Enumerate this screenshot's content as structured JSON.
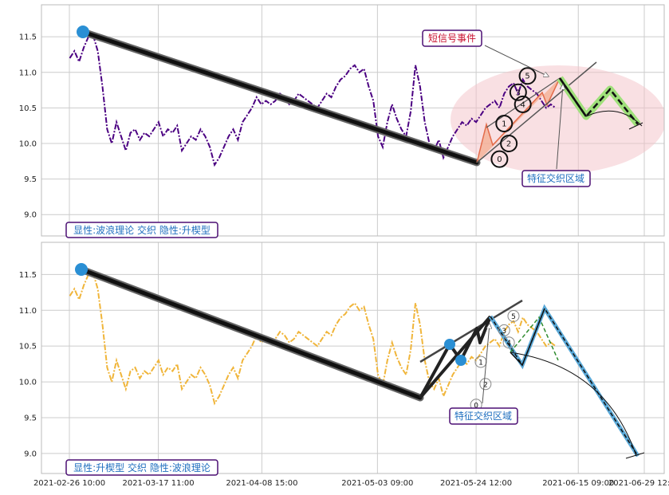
{
  "colors": {
    "purple_price": "#4b0082",
    "gold_price": "#f0b53a",
    "accent_blue": "#2a8fd4",
    "tag_border": "#4b0f73",
    "tag_text_blue": "#1f6fbf",
    "tag_text_red": "#c8102e",
    "highlight_ellipse": "#f4c2c7",
    "wave_green": "#9fe07a",
    "wave_salmon": "#f3a98a",
    "projection_blue": "#5aa9d8"
  },
  "chart_data": [
    {
      "type": "line",
      "panel": "top",
      "ylim": [
        8.7,
        11.95
      ],
      "yticks": [
        "9.0",
        "9.5",
        "10.0",
        "10.5",
        "11.0",
        "11.5"
      ],
      "grid": true,
      "series": [
        {
          "x": [
            "2021-02-26",
            "2021-02-27",
            "2021-02-28",
            "2021-03-01",
            "2021-03-02",
            "2021-03-03",
            "2021-03-04",
            "2021-03-05",
            "2021-03-06",
            "2021-03-07",
            "2021-03-08",
            "2021-03-09",
            "2021-03-10",
            "2021-03-11",
            "2021-03-12",
            "2021-03-13",
            "2021-03-14",
            "2021-03-15",
            "2021-03-16",
            "2021-03-17",
            "2021-03-18",
            "2021-03-19",
            "2021-03-20",
            "2021-03-21",
            "2021-03-22",
            "2021-03-23",
            "2021-03-24",
            "2021-03-25",
            "2021-03-26",
            "2021-03-27",
            "2021-03-28",
            "2021-03-29",
            "2021-03-30",
            "2021-03-31",
            "2021-04-01",
            "2021-04-02",
            "2021-04-03",
            "2021-04-04",
            "2021-04-05",
            "2021-04-06",
            "2021-04-07",
            "2021-04-08",
            "2021-04-09",
            "2021-04-10",
            "2021-04-11",
            "2021-04-12",
            "2021-04-13",
            "2021-04-14",
            "2021-04-15",
            "2021-04-16",
            "2021-04-17",
            "2021-04-18",
            "2021-04-19",
            "2021-04-20",
            "2021-04-21",
            "2021-04-22",
            "2021-04-23",
            "2021-04-24",
            "2021-04-25",
            "2021-04-26",
            "2021-04-27",
            "2021-04-28",
            "2021-04-29",
            "2021-04-30",
            "2021-05-01",
            "2021-05-02",
            "2021-05-03",
            "2021-05-04",
            "2021-05-05",
            "2021-05-06",
            "2021-05-07",
            "2021-05-08",
            "2021-05-09",
            "2021-05-10",
            "2021-05-11",
            "2021-05-12",
            "2021-05-13",
            "2021-05-14",
            "2021-05-15",
            "2021-05-16",
            "2021-05-17",
            "2021-05-18",
            "2021-05-19",
            "2021-05-20",
            "2021-05-21",
            "2021-05-22",
            "2021-05-23",
            "2021-05-24",
            "2021-05-25",
            "2021-05-26",
            "2021-05-27",
            "2021-05-28",
            "2021-05-29",
            "2021-05-30",
            "2021-05-31",
            "2021-06-01",
            "2021-06-02",
            "2021-06-03",
            "2021-06-04",
            "2021-06-05",
            "2021-06-06",
            "2021-06-07",
            "2021-06-08",
            "2021-06-09",
            "2021-06-10"
          ],
          "values": [
            11.2,
            11.3,
            11.15,
            11.35,
            11.5,
            11.52,
            11.3,
            10.8,
            10.2,
            10.0,
            10.3,
            10.1,
            9.9,
            10.15,
            10.2,
            10.05,
            10.15,
            10.1,
            10.2,
            10.3,
            10.1,
            10.2,
            10.15,
            10.25,
            9.9,
            10.0,
            10.1,
            10.05,
            10.2,
            10.1,
            9.95,
            9.7,
            9.8,
            9.95,
            10.1,
            10.2,
            10.05,
            10.3,
            10.4,
            10.5,
            10.65,
            10.55,
            10.6,
            10.55,
            10.6,
            10.7,
            10.65,
            10.55,
            10.6,
            10.7,
            10.65,
            10.6,
            10.55,
            10.5,
            10.6,
            10.7,
            10.65,
            10.8,
            10.9,
            10.95,
            11.05,
            11.1,
            11.0,
            11.05,
            10.8,
            10.6,
            10.1,
            9.95,
            10.3,
            10.55,
            10.35,
            10.2,
            10.1,
            10.45,
            11.1,
            10.8,
            10.3,
            10.0,
            9.9,
            10.05,
            9.8,
            9.95,
            10.1,
            10.2,
            10.3,
            10.25,
            10.35,
            10.3,
            10.4,
            10.5,
            10.55,
            10.6,
            10.5,
            10.7,
            10.8,
            10.85,
            10.7,
            10.9,
            10.8,
            10.75,
            10.7,
            10.6,
            10.5,
            10.55,
            10.5
          ]
        }
      ],
      "wave_points": {
        "labels": [
          "0",
          "1",
          "2",
          "3",
          "4",
          "5"
        ],
        "x": [
          "2021-05-29",
          "2021-05-30",
          "2021-05-31",
          "2021-06-02",
          "2021-06-03",
          "2021-06-04"
        ],
        "y": [
          9.78,
          10.28,
          10.0,
          10.72,
          10.55,
          10.95
        ]
      },
      "annotations": [
        "短信号事件",
        "特征交织区域"
      ],
      "pattern_label": "显性:波浪理论 交织 隐性:升楔型"
    },
    {
      "type": "line",
      "panel": "bottom",
      "ylim": [
        8.72,
        11.95
      ],
      "yticks": [
        "9.0",
        "9.5",
        "10.0",
        "10.5",
        "11.0",
        "11.5"
      ],
      "xticks": [
        "2021-02-26 10:00",
        "2021-03-17 11:00",
        "2021-04-08 15:00",
        "2021-05-03 09:00",
        "2021-05-24 12:00",
        "2021-06-15 09:00",
        "2021-06-29 12:00"
      ],
      "grid": true,
      "series": [
        {
          "x": [
            "2021-02-26",
            "2021-02-27",
            "2021-02-28",
            "2021-03-01",
            "2021-03-02",
            "2021-03-03",
            "2021-03-04",
            "2021-03-05",
            "2021-03-06",
            "2021-03-07",
            "2021-03-08",
            "2021-03-09",
            "2021-03-10",
            "2021-03-11",
            "2021-03-12",
            "2021-03-13",
            "2021-03-14",
            "2021-03-15",
            "2021-03-16",
            "2021-03-17",
            "2021-03-18",
            "2021-03-19",
            "2021-03-20",
            "2021-03-21",
            "2021-03-22",
            "2021-03-23",
            "2021-03-24",
            "2021-03-25",
            "2021-03-26",
            "2021-03-27",
            "2021-03-28",
            "2021-03-29",
            "2021-03-30",
            "2021-03-31",
            "2021-04-01",
            "2021-04-02",
            "2021-04-03",
            "2021-04-04",
            "2021-04-05",
            "2021-04-06",
            "2021-04-07",
            "2021-04-08",
            "2021-04-09",
            "2021-04-10",
            "2021-04-11",
            "2021-04-12",
            "2021-04-13",
            "2021-04-14",
            "2021-04-15",
            "2021-04-16",
            "2021-04-17",
            "2021-04-18",
            "2021-04-19",
            "2021-04-20",
            "2021-04-21",
            "2021-04-22",
            "2021-04-23",
            "2021-04-24",
            "2021-04-25",
            "2021-04-26",
            "2021-04-27",
            "2021-04-28",
            "2021-04-29",
            "2021-04-30",
            "2021-05-01",
            "2021-05-02",
            "2021-05-03",
            "2021-05-04",
            "2021-05-05",
            "2021-05-06",
            "2021-05-07",
            "2021-05-08",
            "2021-05-09",
            "2021-05-10",
            "2021-05-11",
            "2021-05-12",
            "2021-05-13",
            "2021-05-14",
            "2021-05-15",
            "2021-05-16",
            "2021-05-17",
            "2021-05-18",
            "2021-05-19",
            "2021-05-20",
            "2021-05-21",
            "2021-05-22",
            "2021-05-23",
            "2021-05-24",
            "2021-05-25",
            "2021-05-26",
            "2021-05-27",
            "2021-05-28",
            "2021-05-29",
            "2021-05-30",
            "2021-05-31",
            "2021-06-01",
            "2021-06-02",
            "2021-06-03",
            "2021-06-04",
            "2021-06-05",
            "2021-06-06",
            "2021-06-07",
            "2021-06-08",
            "2021-06-09",
            "2021-06-10"
          ],
          "values": [
            11.2,
            11.3,
            11.15,
            11.35,
            11.5,
            11.52,
            11.3,
            10.8,
            10.2,
            10.0,
            10.3,
            10.1,
            9.9,
            10.15,
            10.2,
            10.05,
            10.15,
            10.1,
            10.2,
            10.3,
            10.1,
            10.2,
            10.15,
            10.25,
            9.9,
            10.0,
            10.1,
            10.05,
            10.2,
            10.1,
            9.95,
            9.7,
            9.8,
            9.95,
            10.1,
            10.2,
            10.05,
            10.3,
            10.4,
            10.5,
            10.65,
            10.55,
            10.6,
            10.55,
            10.6,
            10.7,
            10.65,
            10.55,
            10.6,
            10.7,
            10.65,
            10.6,
            10.55,
            10.5,
            10.6,
            10.7,
            10.65,
            10.8,
            10.9,
            10.95,
            11.05,
            11.1,
            11.0,
            11.05,
            10.8,
            10.6,
            10.1,
            9.95,
            10.3,
            10.55,
            10.35,
            10.2,
            10.1,
            10.45,
            11.1,
            10.8,
            10.3,
            10.0,
            9.9,
            10.05,
            9.8,
            9.95,
            10.1,
            10.2,
            10.3,
            10.25,
            10.35,
            10.3,
            10.4,
            10.5,
            10.55,
            10.6,
            10.5,
            10.7,
            10.8,
            10.85,
            10.7,
            10.9,
            10.8,
            10.75,
            10.7,
            10.6,
            10.5,
            10.55,
            10.5
          ]
        }
      ],
      "wave_points": {
        "labels": [
          "0",
          "1",
          "2",
          "3",
          "4",
          "5"
        ],
        "x": [
          "2021-05-24",
          "2021-05-25",
          "2021-05-26",
          "2021-05-30",
          "2021-05-31",
          "2021-06-01"
        ],
        "y": [
          9.68,
          10.28,
          9.97,
          10.72,
          10.55,
          10.92
        ]
      },
      "annotations": [
        "特征交织区域"
      ],
      "pattern_label": "显性:升楔型 交织 隐性:波浪理论"
    }
  ]
}
